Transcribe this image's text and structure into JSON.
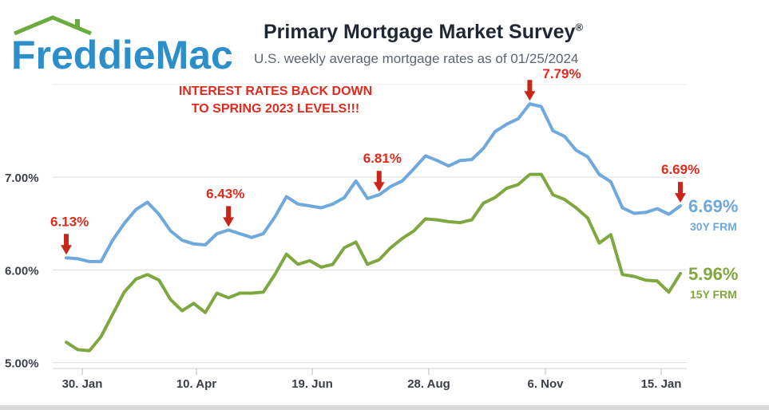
{
  "header": {
    "brand": "FreddieMac",
    "title": "Primary Mortgage Market Survey",
    "title_mark": "®",
    "subtitle": "U.S. weekly average mortgage rates as of 01/25/2024"
  },
  "colors": {
    "brand_green": "#6aab3f",
    "brand_blue": "#2d8fc9",
    "series_30y": "#6ea8dd",
    "series_15y": "#7ea83f",
    "callout_red": "#e02a1c",
    "grid": "#dcdcdc"
  },
  "chart_data": {
    "type": "line",
    "title": "Primary Mortgage Market Survey",
    "subtitle": "U.S. weekly average mortgage rates as of 01/25/2024",
    "xlabel": "",
    "ylabel": "",
    "x_ticks": [
      "30. Jan",
      "10. Apr",
      "19. Jun",
      "28. Aug",
      "6. Nov",
      "15. Jan"
    ],
    "y_ticks": [
      "7.00%",
      "6.00%",
      "5.00%"
    ],
    "ylim": [
      4.98,
      8.05
    ],
    "grid": "horizontal",
    "legend": "right",
    "series": [
      {
        "name": "30Y FRM",
        "end_label": "6.69%",
        "values": [
          6.13,
          6.12,
          6.09,
          6.09,
          6.32,
          6.5,
          6.65,
          6.73,
          6.6,
          6.42,
          6.32,
          6.28,
          6.27,
          6.39,
          6.43,
          6.39,
          6.35,
          6.39,
          6.57,
          6.79,
          6.71,
          6.69,
          6.67,
          6.71,
          6.78,
          6.96,
          6.77,
          6.81,
          6.9,
          6.96,
          7.09,
          7.23,
          7.18,
          7.12,
          7.18,
          7.19,
          7.31,
          7.49,
          7.57,
          7.63,
          7.79,
          7.76,
          7.5,
          7.44,
          7.29,
          7.22,
          7.03,
          6.95,
          6.67,
          6.61,
          6.62,
          6.66,
          6.6,
          6.69
        ]
      },
      {
        "name": "15Y FRM",
        "end_label": "5.96%",
        "values": [
          5.22,
          5.14,
          5.13,
          5.28,
          5.52,
          5.76,
          5.9,
          5.95,
          5.89,
          5.68,
          5.56,
          5.64,
          5.54,
          5.75,
          5.7,
          5.75,
          5.75,
          5.76,
          5.95,
          6.17,
          6.06,
          6.1,
          6.03,
          6.06,
          6.24,
          6.3,
          6.06,
          6.11,
          6.24,
          6.34,
          6.42,
          6.55,
          6.54,
          6.52,
          6.51,
          6.54,
          6.72,
          6.78,
          6.88,
          6.92,
          7.03,
          7.03,
          6.81,
          6.76,
          6.67,
          6.56,
          6.29,
          6.38,
          5.95,
          5.93,
          5.89,
          5.88,
          5.76,
          5.96
        ]
      }
    ],
    "annotations": [
      {
        "label": "6.13%",
        "index": 0,
        "value": 6.13
      },
      {
        "label": "6.43%",
        "index": 14,
        "value": 6.43
      },
      {
        "label": "6.81%",
        "index": 27,
        "value": 6.81
      },
      {
        "label": "7.79%",
        "index": 40,
        "value": 7.79
      },
      {
        "label": "6.69%",
        "index": 53,
        "value": 6.69
      }
    ],
    "headline": [
      "INTEREST RATES BACK DOWN",
      "TO SPRING 2023 LEVELS!!!"
    ]
  }
}
